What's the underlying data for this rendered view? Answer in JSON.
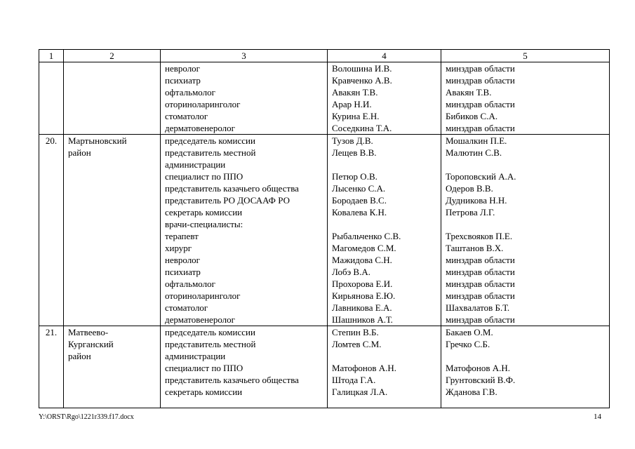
{
  "footer": {
    "file_path": "Y:\\ORST\\Rgo\\1221r339.f17.docx",
    "page_number": "14"
  },
  "table": {
    "headers": [
      "1",
      "2",
      "3",
      "4",
      "5"
    ],
    "rows": [
      {
        "num": "",
        "district": "",
        "lines": [
          {
            "role": "невролог",
            "name": "Волошина И.В.",
            "approver": "минздрав области"
          },
          {
            "role": "психиатр",
            "name": "Кравченко А.В.",
            "approver": "минздрав области"
          },
          {
            "role": "офтальмолог",
            "name": "Авакян Т.В.",
            "approver": "Авакян Т.В."
          },
          {
            "role": "оториноларинголог",
            "name": "Арар Н.И.",
            "approver": "минздрав области"
          },
          {
            "role": "стоматолог",
            "name": "Курина Е.Н.",
            "approver": "Бибиков С.А."
          },
          {
            "role": "дерматовенеролог",
            "name": "Соседкина Т.А.",
            "approver": "минздрав области"
          }
        ]
      },
      {
        "num": "20.",
        "district": "Мартыновский район",
        "lines": [
          {
            "role": "председатель комиссии",
            "name": "Тузов Д.В.",
            "approver": "Мошалкин П.Е."
          },
          {
            "role": "представитель местной",
            "name": "Лещев В.В.",
            "approver": "Малютин С.В."
          },
          {
            "role": "администрации",
            "name": "",
            "approver": ""
          },
          {
            "role": "специалист по ППО",
            "name": "Петюр О.В.",
            "approver": "Тороповский А.А."
          },
          {
            "role": "представитель казачьего общества",
            "name": "Лысенко С.А.",
            "approver": "Одеров В.В."
          },
          {
            "role": "представитель РО ДОСААФ РО",
            "name": "Бородаев В.С.",
            "approver": "Дудникова Н.Н."
          },
          {
            "role": "секретарь комиссии",
            "name": "Ковалева К.Н.",
            "approver": "Петрова Л.Г."
          },
          {
            "role": "врачи-специалисты:",
            "name": "",
            "approver": ""
          },
          {
            "role": "терапевт",
            "name": "Рыбальченко С.В.",
            "approver": "Трехсвояков П.Е."
          },
          {
            "role": "хирург",
            "name": "Магомедов С.М.",
            "approver": "Таштанов В.Х."
          },
          {
            "role": "невролог",
            "name": "Мажидова С.Н.",
            "approver": "минздрав области"
          },
          {
            "role": "психиатр",
            "name": "Лобэ В.А.",
            "approver": "минздрав области"
          },
          {
            "role": "офтальмолог",
            "name": "Прохорова Е.И.",
            "approver": "минздрав области"
          },
          {
            "role": "оториноларинголог",
            "name": "Кирьянова Е.Ю.",
            "approver": "минздрав области"
          },
          {
            "role": "стоматолог",
            "name": "Лавникова Е.А.",
            "approver": "Шахвалатов Б.Т."
          },
          {
            "role": "дерматовенеролог",
            "name": "Шашников А.Т.",
            "approver": "минздрав области"
          }
        ]
      },
      {
        "num": "21.",
        "district": "Матвеево-Курганский район",
        "lines": [
          {
            "role": "председатель комиссии",
            "name": "Степин В.Б.",
            "approver": "Бакаев О.М."
          },
          {
            "role": "представитель местной",
            "name": "Ломтев С.М.",
            "approver": "Гречко С.Б."
          },
          {
            "role": "администрации",
            "name": "",
            "approver": ""
          },
          {
            "role": "специалист по ППО",
            "name": "Матофонов А.Н.",
            "approver": "Матофонов А.Н."
          },
          {
            "role": "представитель казачьего общества",
            "name": "Штода Г.А.",
            "approver": "Грунтовский В.Ф."
          },
          {
            "role": "секретарь комиссии",
            "name": "Галицкая Л.А.",
            "approver": "Жданова Г.В."
          }
        ]
      }
    ]
  }
}
